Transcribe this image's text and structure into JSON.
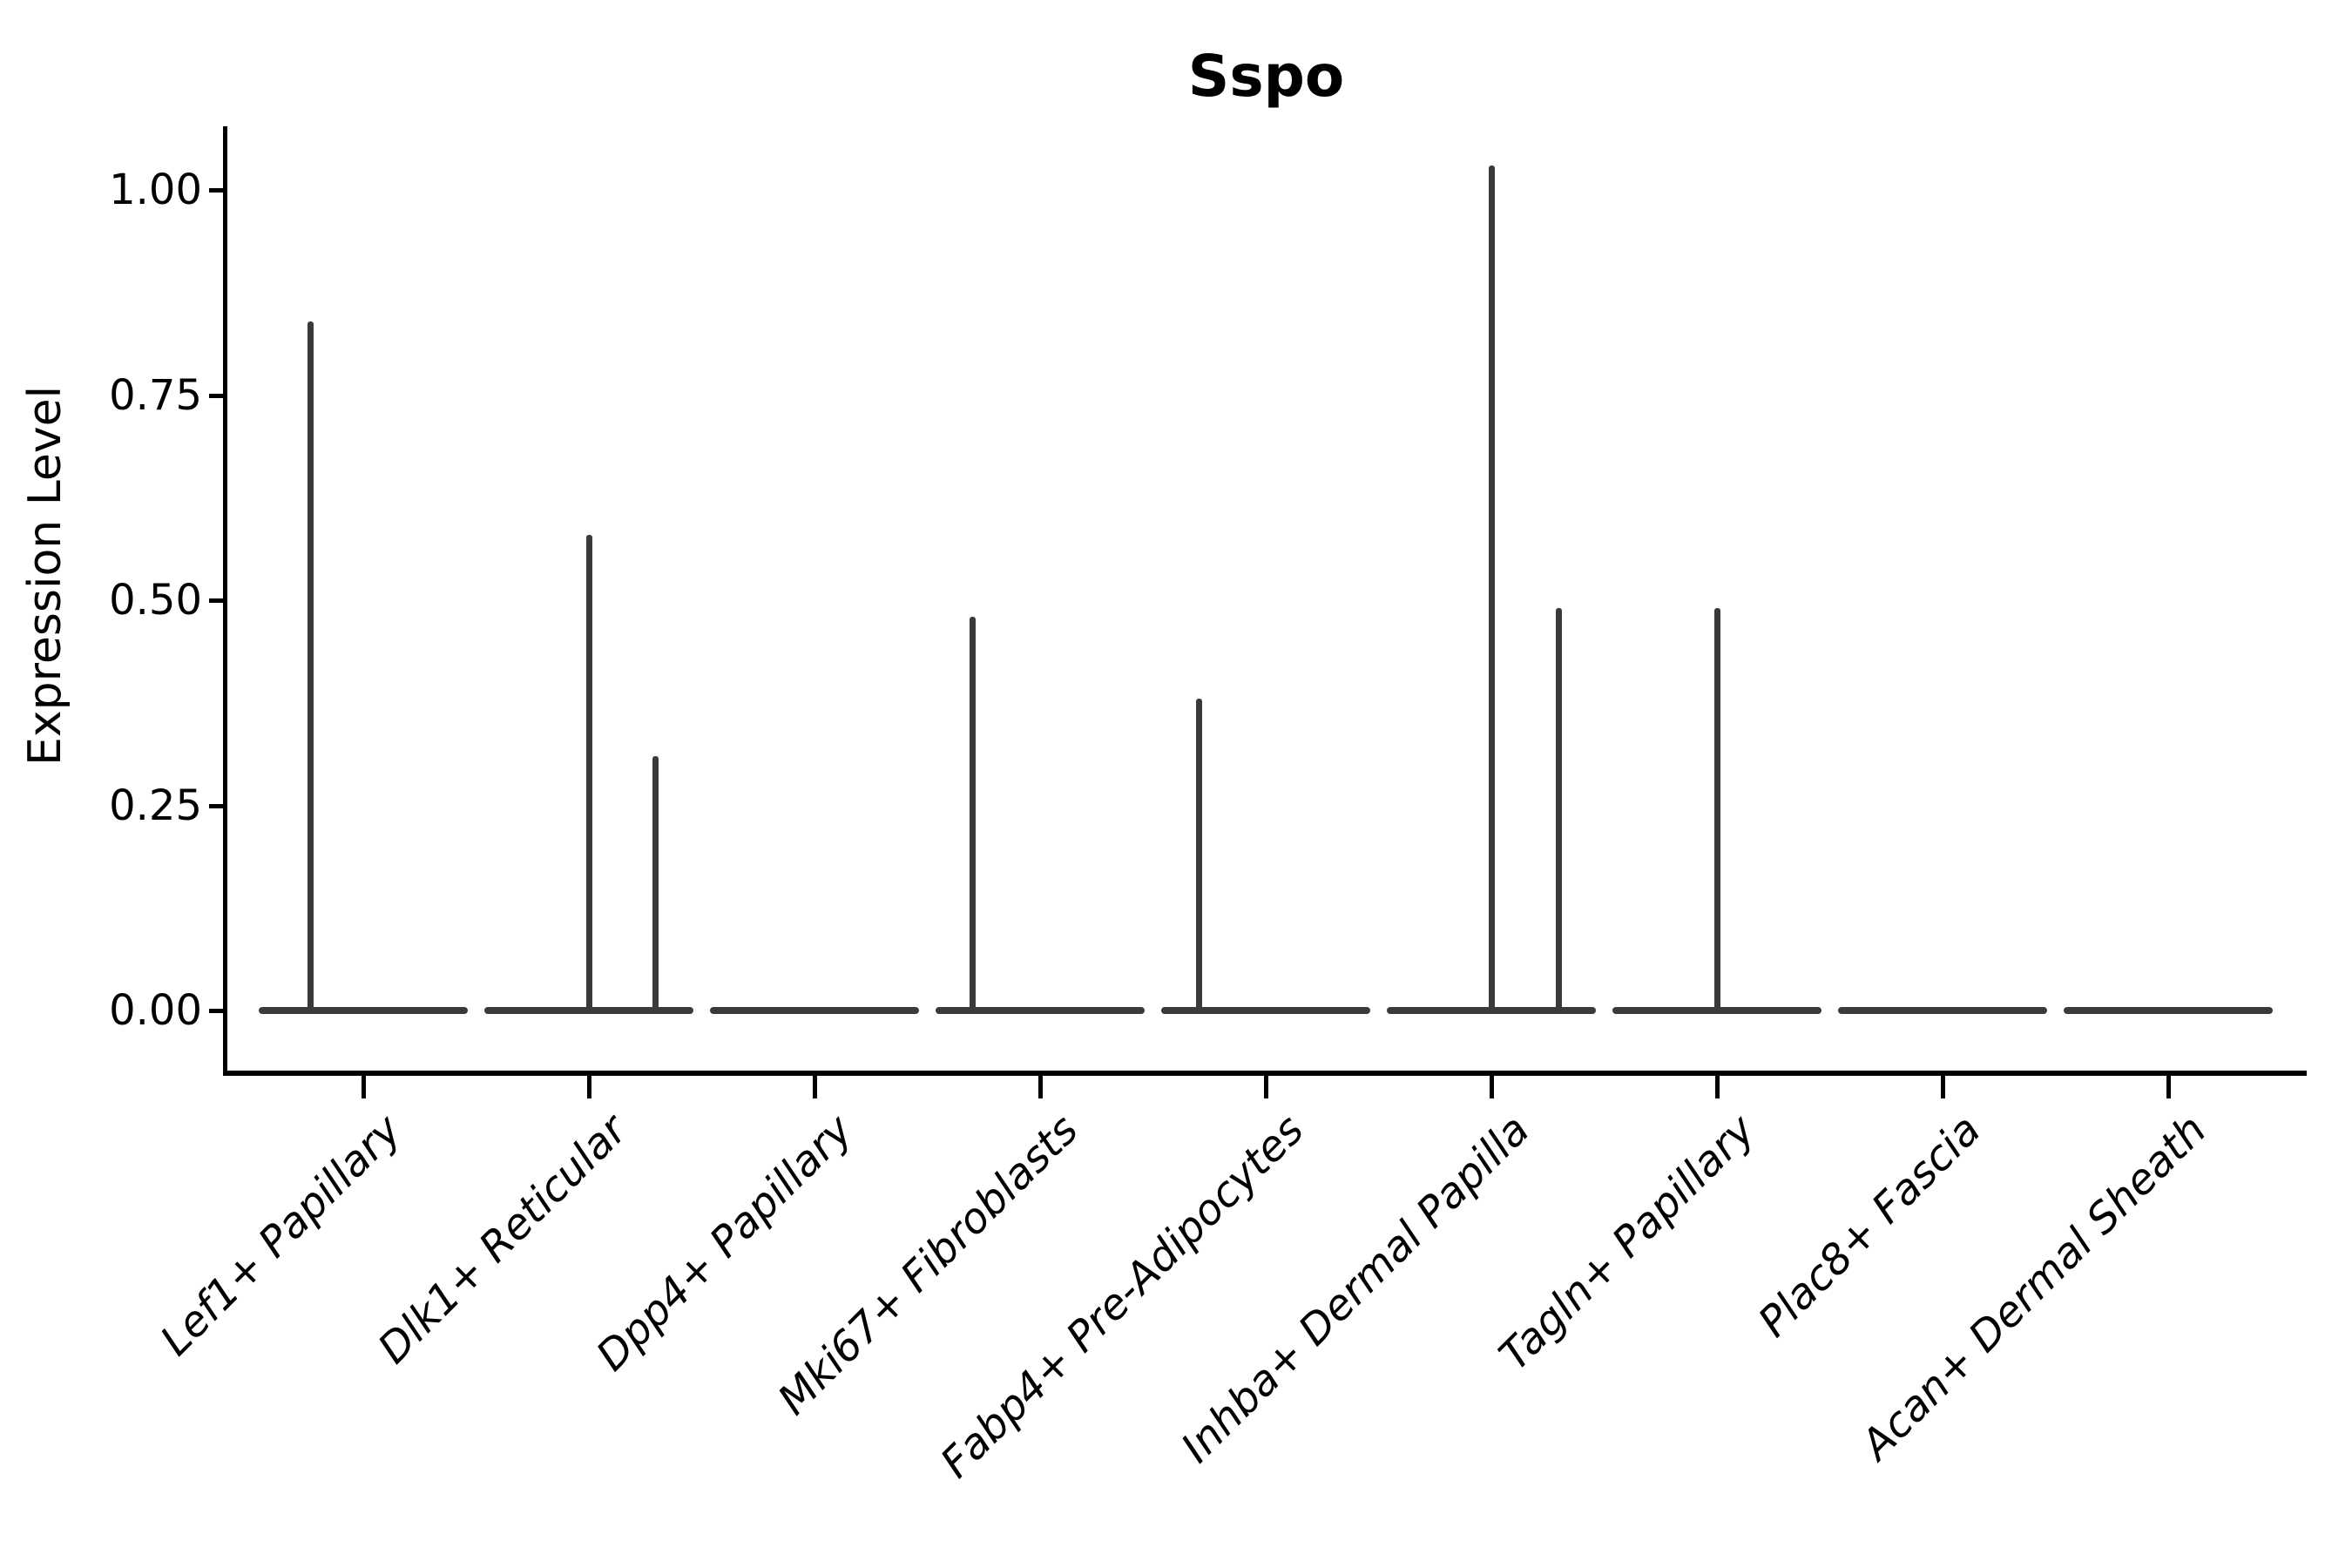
{
  "title": "Sspo",
  "axis_color": "#000000",
  "violin_color": "#3a3a3a",
  "chart_data": {
    "type": "violin",
    "title": "Sspo",
    "xlabel": "",
    "ylabel": "Expression Level",
    "ylim": [
      -0.07,
      1.08
    ],
    "grid": false,
    "legend": "none",
    "yticks": [
      0.0,
      0.25,
      0.5,
      0.75,
      1.0
    ],
    "ytick_labels": [
      "0.00",
      "0.25",
      "0.50",
      "0.75",
      "1.00"
    ],
    "categories": [
      "Lef1+ Papillary",
      "Dlk1+ Reticular",
      "Dpp4+ Papillary",
      "Mki67+ Fibroblasts",
      "Fabp4+ Pre-Adipocytes",
      "Inhba+ Dermal Papilla",
      "Tagln+ Papillary",
      "Plac8+ Fascia",
      "Acan+ Dermal Sheath"
    ],
    "description": "Violin plot of Sspo expression; all distributions are flattened at 0 with thin density spikes reaching the maxima listed below.",
    "series": [
      {
        "name": "Lef1+ Papillary",
        "baseline": 0,
        "spikes": [
          {
            "offset": -0.235,
            "value": 0.84
          }
        ]
      },
      {
        "name": "Dlk1+ Reticular",
        "baseline": 0,
        "spikes": [
          {
            "offset": 0.0,
            "value": 0.58
          },
          {
            "offset": 0.297,
            "value": 0.31
          }
        ]
      },
      {
        "name": "Dpp4+ Papillary",
        "baseline": 0,
        "spikes": []
      },
      {
        "name": "Mki67+ Fibroblasts",
        "baseline": 0,
        "spikes": [
          {
            "offset": -0.3,
            "value": 0.48
          }
        ]
      },
      {
        "name": "Fabp4+ Pre-Adipocytes",
        "baseline": 0,
        "spikes": [
          {
            "offset": -0.297,
            "value": 0.38
          }
        ]
      },
      {
        "name": "Inhba+ Dermal Papilla",
        "baseline": 0,
        "spikes": [
          {
            "offset": 0.0,
            "value": 1.03
          },
          {
            "offset": 0.3,
            "value": 0.49
          }
        ]
      },
      {
        "name": "Tagln+ Papillary",
        "baseline": 0,
        "spikes": [
          {
            "offset": 0.0,
            "value": 0.49
          }
        ]
      },
      {
        "name": "Plac8+ Fascia",
        "baseline": 0,
        "spikes": []
      },
      {
        "name": "Acan+ Dermal Sheath",
        "baseline": 0,
        "spikes": []
      }
    ]
  }
}
